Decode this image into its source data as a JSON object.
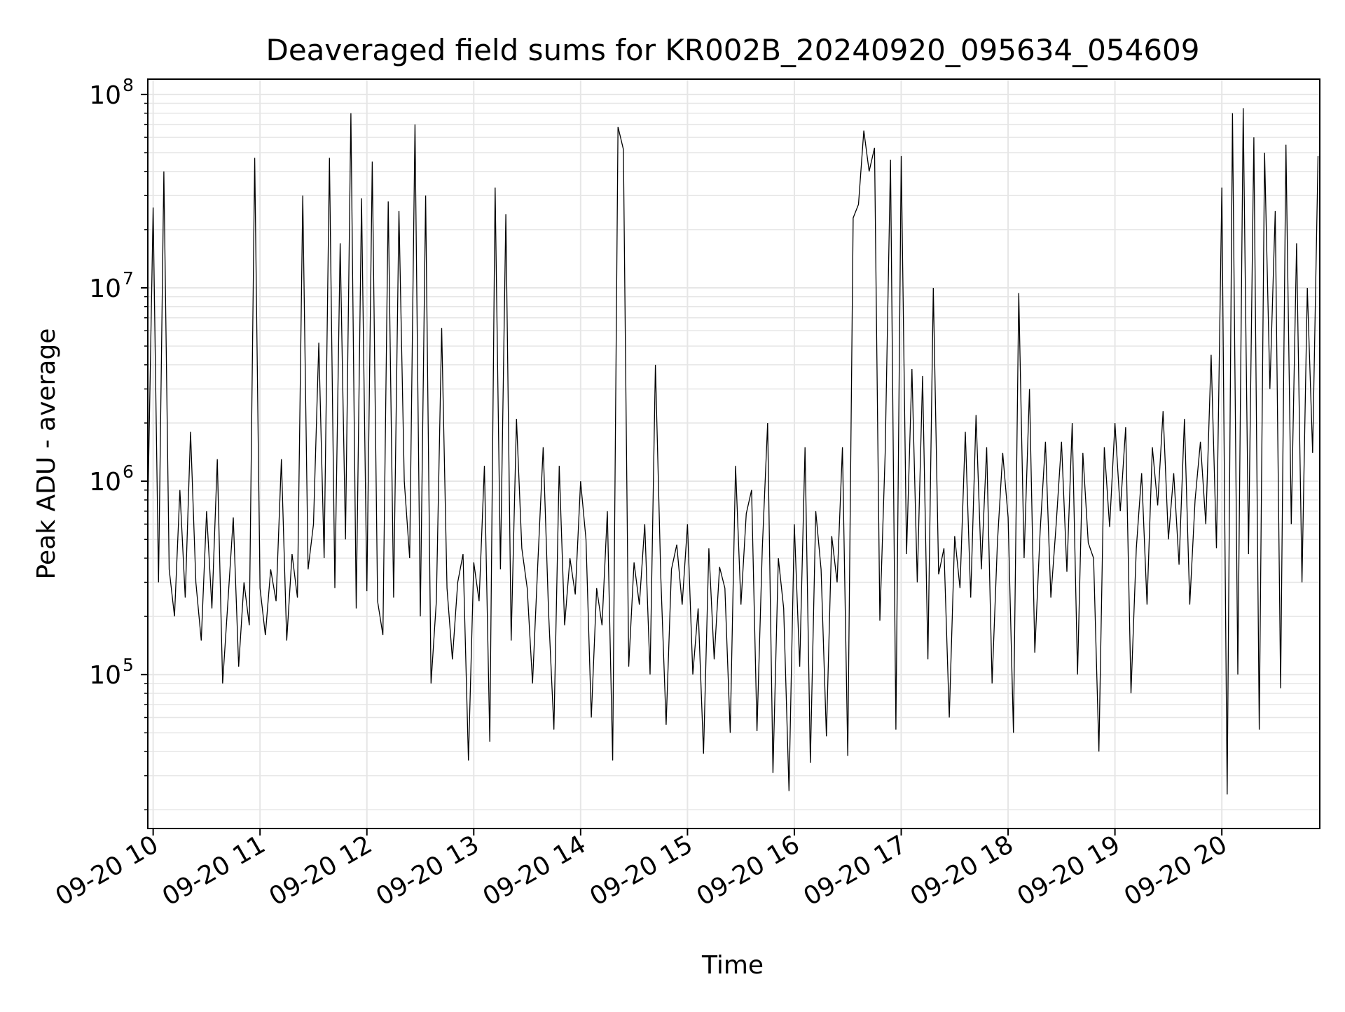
{
  "chart_data": {
    "type": "line",
    "title": "Deaveraged field sums for KR002B_20240920_095634_054609",
    "xlabel": "Time",
    "ylabel": "Peak ADU - average",
    "yscale": "log",
    "ylim": [
      16000,
      120000000
    ],
    "xlim": [
      "2024-09-20 09:57",
      "2024-09-20 20:55"
    ],
    "grid": true,
    "line_color": "#000000",
    "x_ticks": [
      {
        "label": "09-20 10",
        "time": "2024-09-20 10:00"
      },
      {
        "label": "09-20 11",
        "time": "2024-09-20 11:00"
      },
      {
        "label": "09-20 12",
        "time": "2024-09-20 12:00"
      },
      {
        "label": "09-20 13",
        "time": "2024-09-20 13:00"
      },
      {
        "label": "09-20 14",
        "time": "2024-09-20 14:00"
      },
      {
        "label": "09-20 15",
        "time": "2024-09-20 15:00"
      },
      {
        "label": "09-20 16",
        "time": "2024-09-20 16:00"
      },
      {
        "label": "09-20 17",
        "time": "2024-09-20 17:00"
      },
      {
        "label": "09-20 18",
        "time": "2024-09-20 18:00"
      },
      {
        "label": "09-20 19",
        "time": "2024-09-20 19:00"
      },
      {
        "label": "09-20 20",
        "time": "2024-09-20 20:00"
      }
    ],
    "y_ticks": [
      {
        "base": "10",
        "exp": "5",
        "value": 100000
      },
      {
        "base": "10",
        "exp": "6",
        "value": 1000000
      },
      {
        "base": "10",
        "exp": "7",
        "value": 10000000
      },
      {
        "base": "10",
        "exp": "8",
        "value": 100000000
      }
    ],
    "series": [
      {
        "x": [
          "2024-09-20 09:57",
          "2024-09-20 10:00",
          "2024-09-20 10:03",
          "2024-09-20 10:06",
          "2024-09-20 10:09",
          "2024-09-20 10:12",
          "2024-09-20 10:15",
          "2024-09-20 10:18",
          "2024-09-20 10:21",
          "2024-09-20 10:24",
          "2024-09-20 10:27",
          "2024-09-20 10:30",
          "2024-09-20 10:33",
          "2024-09-20 10:36",
          "2024-09-20 10:39",
          "2024-09-20 10:42",
          "2024-09-20 10:45",
          "2024-09-20 10:48",
          "2024-09-20 10:51",
          "2024-09-20 10:54",
          "2024-09-20 10:57",
          "2024-09-20 11:00",
          "2024-09-20 11:03",
          "2024-09-20 11:06",
          "2024-09-20 11:09",
          "2024-09-20 11:12",
          "2024-09-20 11:15",
          "2024-09-20 11:18",
          "2024-09-20 11:21",
          "2024-09-20 11:24",
          "2024-09-20 11:27",
          "2024-09-20 11:30",
          "2024-09-20 11:33",
          "2024-09-20 11:36",
          "2024-09-20 11:39",
          "2024-09-20 11:42",
          "2024-09-20 11:45",
          "2024-09-20 11:48",
          "2024-09-20 11:51",
          "2024-09-20 11:54",
          "2024-09-20 11:57",
          "2024-09-20 12:00",
          "2024-09-20 12:03",
          "2024-09-20 12:06",
          "2024-09-20 12:09",
          "2024-09-20 12:12",
          "2024-09-20 12:15",
          "2024-09-20 12:18",
          "2024-09-20 12:21",
          "2024-09-20 12:24",
          "2024-09-20 12:27",
          "2024-09-20 12:30",
          "2024-09-20 12:33",
          "2024-09-20 12:36",
          "2024-09-20 12:39",
          "2024-09-20 12:42",
          "2024-09-20 12:45",
          "2024-09-20 12:48",
          "2024-09-20 12:51",
          "2024-09-20 12:54",
          "2024-09-20 12:57",
          "2024-09-20 13:00",
          "2024-09-20 13:03",
          "2024-09-20 13:06",
          "2024-09-20 13:09",
          "2024-09-20 13:12",
          "2024-09-20 13:15",
          "2024-09-20 13:18",
          "2024-09-20 13:21",
          "2024-09-20 13:24",
          "2024-09-20 13:27",
          "2024-09-20 13:30",
          "2024-09-20 13:33",
          "2024-09-20 13:36",
          "2024-09-20 13:39",
          "2024-09-20 13:42",
          "2024-09-20 13:45",
          "2024-09-20 13:48",
          "2024-09-20 13:51",
          "2024-09-20 13:54",
          "2024-09-20 13:57",
          "2024-09-20 14:00",
          "2024-09-20 14:03",
          "2024-09-20 14:06",
          "2024-09-20 14:09",
          "2024-09-20 14:12",
          "2024-09-20 14:15",
          "2024-09-20 14:18",
          "2024-09-20 14:21",
          "2024-09-20 14:24",
          "2024-09-20 14:27",
          "2024-09-20 14:30",
          "2024-09-20 14:33",
          "2024-09-20 14:36",
          "2024-09-20 14:39",
          "2024-09-20 14:42",
          "2024-09-20 14:45",
          "2024-09-20 14:48",
          "2024-09-20 14:51",
          "2024-09-20 14:54",
          "2024-09-20 14:57",
          "2024-09-20 15:00",
          "2024-09-20 15:03",
          "2024-09-20 15:06",
          "2024-09-20 15:09",
          "2024-09-20 15:12",
          "2024-09-20 15:15",
          "2024-09-20 15:18",
          "2024-09-20 15:21",
          "2024-09-20 15:24",
          "2024-09-20 15:27",
          "2024-09-20 15:30",
          "2024-09-20 15:33",
          "2024-09-20 15:36",
          "2024-09-20 15:39",
          "2024-09-20 15:42",
          "2024-09-20 15:45",
          "2024-09-20 15:48",
          "2024-09-20 15:51",
          "2024-09-20 15:54",
          "2024-09-20 15:57",
          "2024-09-20 16:00",
          "2024-09-20 16:03",
          "2024-09-20 16:06",
          "2024-09-20 16:09",
          "2024-09-20 16:12",
          "2024-09-20 16:15",
          "2024-09-20 16:18",
          "2024-09-20 16:21",
          "2024-09-20 16:24",
          "2024-09-20 16:27",
          "2024-09-20 16:30",
          "2024-09-20 16:33",
          "2024-09-20 16:36",
          "2024-09-20 16:39",
          "2024-09-20 16:42",
          "2024-09-20 16:45",
          "2024-09-20 16:48",
          "2024-09-20 16:51",
          "2024-09-20 16:54",
          "2024-09-20 16:57",
          "2024-09-20 17:00",
          "2024-09-20 17:03",
          "2024-09-20 17:06",
          "2024-09-20 17:09",
          "2024-09-20 17:12",
          "2024-09-20 17:15",
          "2024-09-20 17:18",
          "2024-09-20 17:21",
          "2024-09-20 17:24",
          "2024-09-20 17:27",
          "2024-09-20 17:30",
          "2024-09-20 17:33",
          "2024-09-20 17:36",
          "2024-09-20 17:39",
          "2024-09-20 17:42",
          "2024-09-20 17:45",
          "2024-09-20 17:48",
          "2024-09-20 17:51",
          "2024-09-20 17:54",
          "2024-09-20 17:57",
          "2024-09-20 18:00",
          "2024-09-20 18:03",
          "2024-09-20 18:06",
          "2024-09-20 18:09",
          "2024-09-20 18:12",
          "2024-09-20 18:15",
          "2024-09-20 18:18",
          "2024-09-20 18:21",
          "2024-09-20 18:24",
          "2024-09-20 18:27",
          "2024-09-20 18:30",
          "2024-09-20 18:33",
          "2024-09-20 18:36",
          "2024-09-20 18:39",
          "2024-09-20 18:42",
          "2024-09-20 18:45",
          "2024-09-20 18:48",
          "2024-09-20 18:51",
          "2024-09-20 18:54",
          "2024-09-20 18:57",
          "2024-09-20 19:00",
          "2024-09-20 19:03",
          "2024-09-20 19:06",
          "2024-09-20 19:09",
          "2024-09-20 19:12",
          "2024-09-20 19:15",
          "2024-09-20 19:18",
          "2024-09-20 19:21",
          "2024-09-20 19:24",
          "2024-09-20 19:27",
          "2024-09-20 19:30",
          "2024-09-20 19:33",
          "2024-09-20 19:36",
          "2024-09-20 19:39",
          "2024-09-20 19:42",
          "2024-09-20 19:45",
          "2024-09-20 19:48",
          "2024-09-20 19:51",
          "2024-09-20 19:54",
          "2024-09-20 19:57",
          "2024-09-20 20:00",
          "2024-09-20 20:03",
          "2024-09-20 20:06",
          "2024-09-20 20:09",
          "2024-09-20 20:12",
          "2024-09-20 20:15",
          "2024-09-20 20:18",
          "2024-09-20 20:21",
          "2024-09-20 20:24",
          "2024-09-20 20:27",
          "2024-09-20 20:30",
          "2024-09-20 20:33",
          "2024-09-20 20:36",
          "2024-09-20 20:39",
          "2024-09-20 20:42",
          "2024-09-20 20:45",
          "2024-09-20 20:48",
          "2024-09-20 20:51",
          "2024-09-20 20:54"
        ],
        "values": [
          700000,
          26000000,
          300000,
          40000000,
          350000,
          200000,
          900000,
          250000,
          1800000,
          300000,
          150000,
          700000,
          220000,
          1300000,
          90000,
          240000,
          650000,
          110000,
          300000,
          180000,
          47000000,
          280000,
          160000,
          350000,
          240000,
          1300000,
          150000,
          420000,
          250000,
          30000000,
          350000,
          600000,
          5200000,
          400000,
          47000000,
          280000,
          17000000,
          500000,
          80000000,
          220000,
          29000000,
          270000,
          45000000,
          240000,
          160000,
          28000000,
          250000,
          25000000,
          1000000,
          400000,
          70000000,
          200000,
          30000000,
          90000,
          240000,
          6200000,
          280000,
          120000,
          300000,
          420000,
          36000,
          380000,
          240000,
          1200000,
          45000,
          33000000,
          350000,
          24000000,
          150000,
          2100000,
          450000,
          280000,
          90000,
          380000,
          1500000,
          210000,
          52000,
          1200000,
          180000,
          400000,
          260000,
          1000000,
          500000,
          60000,
          280000,
          180000,
          700000,
          36000,
          68000000,
          52000000,
          110000,
          380000,
          230000,
          600000,
          100000,
          4000000,
          320000,
          55000,
          350000,
          470000,
          230000,
          600000,
          100000,
          220000,
          39000,
          450000,
          120000,
          360000,
          280000,
          50000,
          1200000,
          230000,
          680000,
          900000,
          51000,
          450000,
          2000000,
          31000,
          400000,
          220000,
          25000,
          600000,
          110000,
          1500000,
          35000,
          700000,
          350000,
          48000,
          520000,
          300000,
          1500000,
          38000,
          23000000,
          27000000,
          65000000,
          40000000,
          53000000,
          190000,
          1400000,
          46000000,
          52000,
          48000000,
          420000,
          3800000,
          300000,
          3500000,
          120000,
          10000000,
          330000,
          450000,
          60000,
          520000,
          280000,
          1800000,
          250000,
          2200000,
          350000,
          1500000,
          90000,
          480000,
          1400000,
          650000,
          50000,
          9400000,
          400000,
          3000000,
          130000,
          550000,
          1600000,
          250000,
          600000,
          1600000,
          340000,
          2000000,
          100000,
          1400000,
          480000,
          400000,
          40000,
          1500000,
          580000,
          2000000,
          700000,
          1900000,
          80000,
          450000,
          1100000,
          230000,
          1500000,
          750000,
          2300000,
          500000,
          1100000,
          370000,
          2100000,
          230000,
          800000,
          1600000,
          600000,
          4500000,
          450000,
          33000000,
          24000,
          80000000,
          100000,
          85000000,
          420000,
          60000000,
          52000,
          50000000,
          3000000,
          25000000,
          85000,
          55000000,
          600000,
          17000000,
          300000,
          10000000,
          1400000,
          48000000
        ]
      }
    ]
  }
}
